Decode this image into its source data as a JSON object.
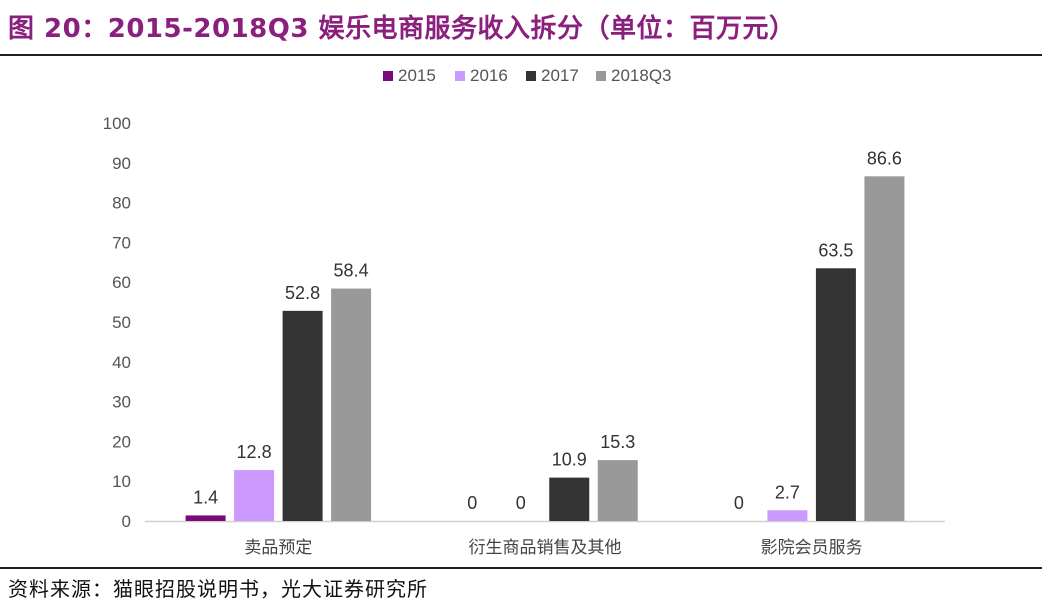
{
  "figure": {
    "title": "图 20：2015-2018Q3 娱乐电商服务收入拆分（单位：百万元）",
    "source": "资料来源：猫眼招股说明书，光大证券研究所"
  },
  "chart_data": {
    "type": "bar",
    "categories": [
      "卖品预定",
      "衍生商品销售及其他",
      "影院会员服务"
    ],
    "series": [
      {
        "name": "2015",
        "values": [
          1.4,
          0,
          0
        ],
        "color": "#7a0a78"
      },
      {
        "name": "2016",
        "values": [
          12.8,
          0,
          2.7
        ],
        "color": "#cc99ff"
      },
      {
        "name": "2017",
        "values": [
          52.8,
          10.9,
          63.5
        ],
        "color": "#333333"
      },
      {
        "name": "2018Q3",
        "values": [
          58.4,
          15.3,
          86.6
        ],
        "color": "#999999"
      }
    ],
    "ylim": [
      0,
      100
    ],
    "yticks": [
      0,
      10,
      20,
      30,
      40,
      50,
      60,
      70,
      80,
      90,
      100
    ],
    "legend_position": "top-center",
    "grid": false
  }
}
